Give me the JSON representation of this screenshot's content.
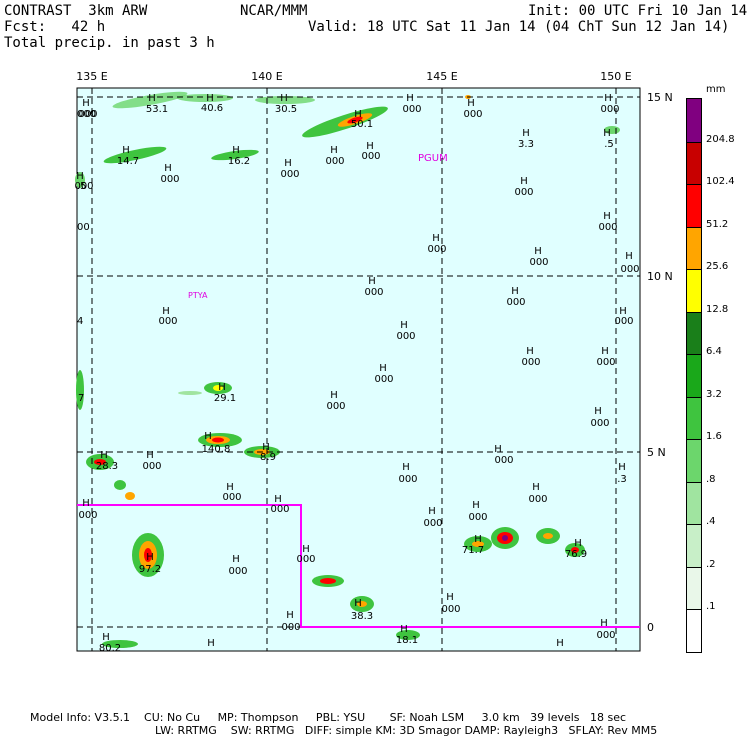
{
  "header": {
    "line1_left": "CONTRAST  3km ARW",
    "line1_mid": "NCAR/MMM",
    "line1_right": "Init: 00 UTC Fri 10 Jan 14",
    "line2_left": "Fcst:   42 h",
    "line2_right": "Valid: 18 UTC Sat 11 Jan 14 (04 ChT Sun 12 Jan 14)",
    "line3_left": "Total precip. in past 3 h"
  },
  "map": {
    "lon_labels": [
      "135 E",
      "140 E",
      "145 E",
      "150 E"
    ],
    "lat_labels": [
      "15 N",
      "10 N",
      "5 N",
      "0"
    ],
    "places": [
      "PGUM",
      "PTYA"
    ],
    "highs": [
      {
        "h": "H",
        "v": "000"
      },
      {
        "h": "H",
        "v": "53.1"
      },
      {
        "h": "H",
        "v": "40.6"
      },
      {
        "h": "H",
        "v": "30.5"
      },
      {
        "h": "H",
        "v": "50.1"
      },
      {
        "h": "H",
        "v": "000"
      },
      {
        "h": "H",
        "v": "000"
      },
      {
        "h": "H",
        "v": "000"
      },
      {
        "h": "H",
        "v": "14.7"
      },
      {
        "h": "H",
        "v": "16.2"
      },
      {
        "h": "H",
        "v": "000"
      },
      {
        "h": "H",
        "v": "000"
      },
      {
        "h": "H",
        "v": "000"
      },
      {
        "h": "H",
        "v": "000"
      },
      {
        "h": "H",
        "v": "3.3"
      },
      {
        "h": "H",
        "v": ".5"
      },
      {
        "h": "H",
        "v": "000"
      },
      {
        "h": "H",
        "v": "000"
      },
      {
        "h": "H",
        "v": "000"
      },
      {
        "h": "H",
        "v": "000"
      },
      {
        "h": "H",
        "v": "000"
      },
      {
        "h": "H",
        "v": "000"
      },
      {
        "h": "H",
        "v": "000"
      },
      {
        "h": "H",
        "v": "000"
      },
      {
        "h": "H",
        "v": "000"
      },
      {
        "h": "H",
        "v": "000"
      },
      {
        "h": "H",
        "v": "000"
      },
      {
        "h": "H",
        "v": "000"
      },
      {
        "h": "H",
        "v": "29.1"
      },
      {
        "h": "H",
        "v": "000"
      },
      {
        "h": "H",
        "v": "000"
      },
      {
        "h": "H",
        "v": "140.8"
      },
      {
        "h": "H",
        "v": "8.9"
      },
      {
        "h": "H",
        "v": "28.3"
      },
      {
        "h": "H",
        "v": "000"
      },
      {
        "h": "H",
        "v": "000"
      },
      {
        "h": "H",
        "v": "000"
      },
      {
        "h": "H",
        "v": "000"
      },
      {
        "h": "H",
        "v": ".3"
      },
      {
        "h": "H",
        "v": "000"
      },
      {
        "h": "H",
        "v": "000"
      },
      {
        "h": "H",
        "v": "000"
      },
      {
        "h": "H",
        "v": "000"
      },
      {
        "h": "H",
        "v": "000"
      },
      {
        "h": "H",
        "v": "000"
      },
      {
        "h": "H",
        "v": "000"
      },
      {
        "h": "H",
        "v": "97.2"
      },
      {
        "h": "H",
        "v": "000"
      },
      {
        "h": "H",
        "v": "71.7"
      },
      {
        "h": "H",
        "v": "76.9"
      },
      {
        "h": "H",
        "v": "000"
      },
      {
        "h": "H",
        "v": "000"
      },
      {
        "h": "H",
        "v": "38.3"
      },
      {
        "h": "H",
        "v": "000"
      },
      {
        "h": "H",
        "v": "18.1"
      },
      {
        "h": "H",
        "v": "000"
      },
      {
        "h": "H",
        "v": "80.2"
      },
      {
        "h": "H",
        "v": ""
      },
      {
        "h": "H",
        "v": ""
      }
    ],
    "edge_labels": [
      "000",
      ".5",
      "00",
      "4",
      "7"
    ]
  },
  "colorbar": {
    "units": "mm",
    "labels": [
      "204.8",
      "102.4",
      "51.2",
      "25.6",
      "12.8",
      "6.4",
      "3.2",
      "1.6",
      ".8",
      ".4",
      ".2",
      ".1"
    ],
    "colors": [
      "#ffffff",
      "#e9f7e9",
      "#c8efc8",
      "#a0e4a0",
      "#6cd66c",
      "#3fc43f",
      "#1aa81a",
      "#1a7f1a",
      "#ffff00",
      "#ffa500",
      "#ff0000",
      "#c80000",
      "#800080"
    ]
  },
  "info": {
    "line1": "Model Info: V3.5.1    CU: No Cu     MP: Thompson     PBL: YSU       SF: Noah LSM     3.0 km   39 levels   18 sec",
    "line2": "LW: RRTMG    SW: RRTMG   DIFF: simple KM: 3D Smagor DAMP: Rayleigh3   SFLAY: Rev MM5"
  }
}
